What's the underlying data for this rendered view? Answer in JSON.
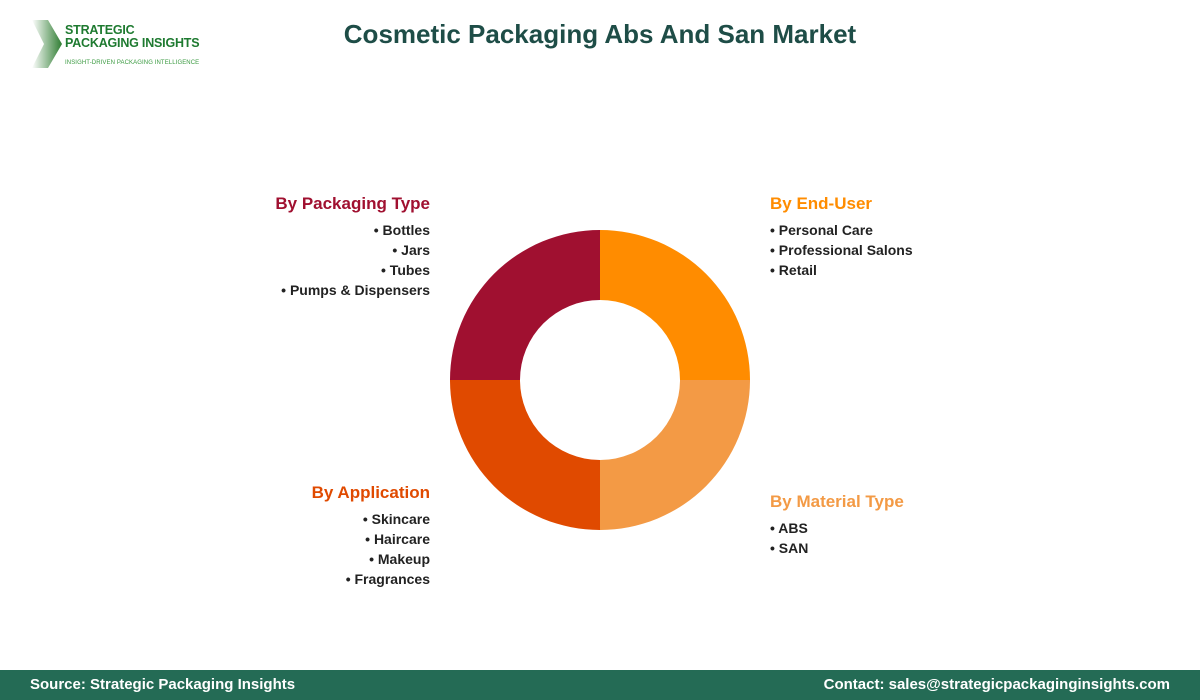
{
  "logo": {
    "line1": "STRATEGIC",
    "line2": "PACKAGING INSIGHTS",
    "tagline": "INSIGHT-DRIVEN PACKAGING INTELLIGENCE"
  },
  "title": "Cosmetic Packaging Abs And San Market",
  "chart_data": {
    "type": "pie",
    "donut": true,
    "categories": [
      "By End-User",
      "By Material Type",
      "By Application",
      "By Packaging Type"
    ],
    "values": [
      25,
      25,
      25,
      25
    ],
    "colors": [
      "#FF8C00",
      "#F39A45",
      "#E04A00",
      "#A01030"
    ]
  },
  "segments": {
    "end_user": {
      "title": "By End-User",
      "color": "#FF8C00",
      "items": [
        "Personal Care",
        "Professional Salons",
        "Retail"
      ]
    },
    "material": {
      "title": "By Material Type",
      "color": "#F39A45",
      "items": [
        "ABS",
        "SAN"
      ]
    },
    "application": {
      "title": "By Application",
      "color": "#E04A00",
      "items": [
        "Skincare",
        "Haircare",
        "Makeup",
        "Fragrances"
      ]
    },
    "packaging": {
      "title": "By Packaging Type",
      "color": "#A01030",
      "items": [
        "Bottles",
        "Jars",
        "Tubes",
        "Pumps & Dispensers"
      ]
    }
  },
  "footer": {
    "source": "Source: Strategic Packaging Insights",
    "contact": "Contact: sales@strategicpackaginginsights.com"
  }
}
